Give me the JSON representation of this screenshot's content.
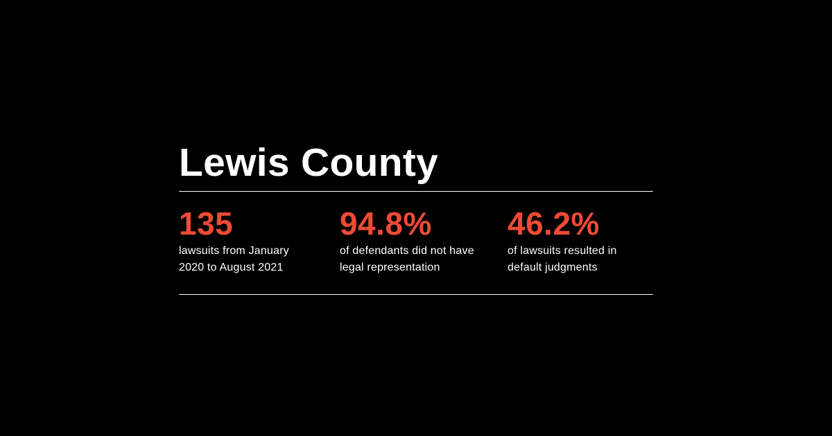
{
  "title": "Lewis County",
  "accent_color": "#ee4b35",
  "background_color": "#000000",
  "stats": [
    {
      "value": "135",
      "label_line1": "lawsuits from January",
      "label_line2": "2020 to August 2021"
    },
    {
      "value": "94.8%",
      "label_line1": "of defendants did not have",
      "label_line2": "legal representation"
    },
    {
      "value": "46.2%",
      "label_line1": "of lawsuits resulted in",
      "label_line2": "default judgments"
    }
  ]
}
